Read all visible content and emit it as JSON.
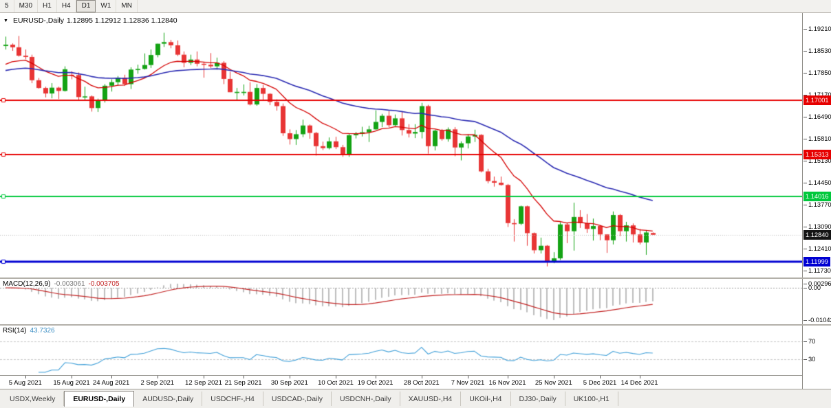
{
  "icons": {
    "dropdown": "▼"
  },
  "toolbar": {
    "timeframes": [
      {
        "label": "5",
        "active": false
      },
      {
        "label": "M30",
        "active": false
      },
      {
        "label": "H1",
        "active": false
      },
      {
        "label": "H4",
        "active": false
      },
      {
        "label": "D1",
        "active": true
      },
      {
        "label": "W1",
        "active": false
      },
      {
        "label": "MN",
        "active": false
      }
    ]
  },
  "chart": {
    "title_symbol": "EURUSD-,Daily",
    "title_ohlc": "1.12895 1.12912 1.12836 1.12840"
  },
  "chart_data": {
    "type": "candlestick",
    "symbol": "EURUSD-",
    "timeframe": "Daily",
    "current_bar": {
      "open": "1.12895",
      "high": "1.12912",
      "low": "1.12836",
      "close": "1.12840"
    },
    "ylim": [
      1.1173,
      1.1921
    ],
    "colors": {
      "bull": "#14a314",
      "bear": "#e83535",
      "ma_fast": "#d40000",
      "ma_slow": "#2a2ab2",
      "bid_line": "#bcbcbc"
    },
    "price_scale_ticks": [
      "1.19210",
      "1.18530",
      "1.17850",
      "1.17170",
      "1.16490",
      "1.15810",
      "1.15130",
      "1.14450",
      "1.13770",
      "1.13090",
      "1.12410",
      "1.11730"
    ],
    "horizontal_lines": [
      {
        "price": 1.17001,
        "label": "1.17001",
        "color": "#e60000",
        "width": 2
      },
      {
        "price": 1.15313,
        "label": "1.15313",
        "color": "#e60000",
        "width": 2
      },
      {
        "price": 1.14016,
        "label": "1.14016",
        "color": "#00c83c",
        "width": 2
      },
      {
        "price": 1.11999,
        "label": "1.11999",
        "color": "#0000d2",
        "width": 3
      }
    ],
    "current_price": {
      "price": 1.1284,
      "label": "1.12840",
      "color": "#141414"
    },
    "moving_averages": [
      {
        "name": "fast-red",
        "type": "ema",
        "period": 12,
        "seed": 1.18,
        "color": "#d40000",
        "width": 1.3
      },
      {
        "name": "slow-blue",
        "type": "ema",
        "period": 40,
        "seed": 1.1788,
        "color": "#2a2ab2",
        "width": 1.6
      }
    ],
    "time_labels": [
      {
        "text": "5 Aug 2021",
        "bar": 3
      },
      {
        "text": "15 Aug 2021",
        "bar": 10
      },
      {
        "text": "24 Aug 2021",
        "bar": 16
      },
      {
        "text": "2 Sep 2021",
        "bar": 23
      },
      {
        "text": "12 Sep 2021",
        "bar": 30
      },
      {
        "text": "21 Sep 2021",
        "bar": 36
      },
      {
        "text": "30 Sep 2021",
        "bar": 43
      },
      {
        "text": "10 Oct 2021",
        "bar": 50
      },
      {
        "text": "19 Oct 2021",
        "bar": 56
      },
      {
        "text": "28 Oct 2021",
        "bar": 63
      },
      {
        "text": "7 Nov 2021",
        "bar": 70
      },
      {
        "text": "16 Nov 2021",
        "bar": 76
      },
      {
        "text": "25 Nov 2021",
        "bar": 83
      },
      {
        "text": "5 Dec 2021",
        "bar": 90
      },
      {
        "text": "14 Dec 2021",
        "bar": 96
      }
    ],
    "indicators": {
      "macd": {
        "label": "MACD(12,26,9)",
        "values": [
          "-0.003061",
          "-0.003705"
        ],
        "scale": [
          "0.002966",
          "0.00",
          "-0.010422"
        ],
        "histogram_color": "#bdbdbd",
        "signal_color": "#c22222"
      },
      "rsi": {
        "label": "RSI(14)",
        "value": "43.7326",
        "levels": [
          70,
          30
        ],
        "scale": [
          "70",
          "30"
        ],
        "line_color": "#3f9fd8",
        "level_color": "#c8c8c8"
      }
    },
    "candles": [
      [
        "2021.08.02",
        1.1868,
        1.1897,
        1.1857,
        1.1872
      ],
      [
        "2021.08.03",
        1.1872,
        1.1876,
        1.1853,
        1.1864
      ],
      [
        "2021.08.04",
        1.1864,
        1.1899,
        1.1835,
        1.1838
      ],
      [
        "2021.08.05",
        1.1838,
        1.1857,
        1.1827,
        1.1834
      ],
      [
        "2021.08.06",
        1.1834,
        1.1841,
        1.1753,
        1.1762
      ],
      [
        "2021.08.09",
        1.1762,
        1.1769,
        1.1736,
        1.1738
      ],
      [
        "2021.08.10",
        1.1738,
        1.1742,
        1.1709,
        1.1721
      ],
      [
        "2021.08.11",
        1.1721,
        1.1753,
        1.1706,
        1.1739
      ],
      [
        "2021.08.12",
        1.1739,
        1.1742,
        1.1704,
        1.1729
      ],
      [
        "2021.08.13",
        1.1729,
        1.1805,
        1.1727,
        1.1796
      ],
      [
        "2021.08.16",
        1.1779,
        1.179,
        1.1765,
        1.1778
      ],
      [
        "2021.08.17",
        1.1778,
        1.1786,
        1.1702,
        1.171
      ],
      [
        "2021.08.18",
        1.171,
        1.1742,
        1.17,
        1.1712
      ],
      [
        "2021.08.19",
        1.1712,
        1.1715,
        1.1665,
        1.1676
      ],
      [
        "2021.08.20",
        1.1676,
        1.1705,
        1.1664,
        1.1698
      ],
      [
        "2021.08.23",
        1.1698,
        1.175,
        1.1693,
        1.1745
      ],
      [
        "2021.08.24",
        1.1745,
        1.1765,
        1.1727,
        1.1756
      ],
      [
        "2021.08.25",
        1.1756,
        1.1775,
        1.1745,
        1.177
      ],
      [
        "2021.08.26",
        1.177,
        1.1779,
        1.1745,
        1.175
      ],
      [
        "2021.08.27",
        1.175,
        1.1802,
        1.1735,
        1.1795
      ],
      [
        "2021.08.30",
        1.1795,
        1.181,
        1.1782,
        1.1797
      ],
      [
        "2021.08.31",
        1.1797,
        1.1845,
        1.1795,
        1.1809
      ],
      [
        "2021.09.01",
        1.1809,
        1.1857,
        1.18,
        1.184
      ],
      [
        "2021.09.02",
        1.184,
        1.1875,
        1.1833,
        1.1875
      ],
      [
        "2021.09.03",
        1.1875,
        1.1909,
        1.1865,
        1.188
      ],
      [
        "2021.09.06",
        1.188,
        1.1887,
        1.1861,
        1.187
      ],
      [
        "2021.09.07",
        1.187,
        1.1885,
        1.1837,
        1.1841
      ],
      [
        "2021.09.08",
        1.1841,
        1.1851,
        1.1802,
        1.1816
      ],
      [
        "2021.09.09",
        1.1816,
        1.1841,
        1.1809,
        1.1826
      ],
      [
        "2021.09.10",
        1.1826,
        1.1851,
        1.1805,
        1.1813
      ],
      [
        "2021.09.13",
        1.1813,
        1.1818,
        1.177,
        1.181
      ],
      [
        "2021.09.14",
        1.181,
        1.1846,
        1.18,
        1.1805
      ],
      [
        "2021.09.15",
        1.1805,
        1.1832,
        1.1795,
        1.1816
      ],
      [
        "2021.09.16",
        1.1816,
        1.1821,
        1.175,
        1.1766
      ],
      [
        "2021.09.17",
        1.1766,
        1.1788,
        1.1725,
        1.1725
      ],
      [
        "2021.09.20",
        1.1725,
        1.1738,
        1.17,
        1.1726
      ],
      [
        "2021.09.21",
        1.1726,
        1.1749,
        1.1715,
        1.1726
      ],
      [
        "2021.09.22",
        1.1726,
        1.1756,
        1.1684,
        1.1687
      ],
      [
        "2021.09.23",
        1.1687,
        1.175,
        1.1683,
        1.1738
      ],
      [
        "2021.09.24",
        1.1738,
        1.1747,
        1.1701,
        1.172
      ],
      [
        "2021.09.27",
        1.172,
        1.1722,
        1.1685,
        1.1695
      ],
      [
        "2021.09.28",
        1.1695,
        1.1703,
        1.1668,
        1.1682
      ],
      [
        "2021.09.29",
        1.1682,
        1.169,
        1.159,
        1.1598
      ],
      [
        "2021.09.30",
        1.1598,
        1.161,
        1.1563,
        1.158
      ],
      [
        "2021.10.01",
        1.158,
        1.1608,
        1.1562,
        1.1595
      ],
      [
        "2021.10.04",
        1.1595,
        1.164,
        1.1586,
        1.1622
      ],
      [
        "2021.10.05",
        1.1622,
        1.1625,
        1.1581,
        1.1599
      ],
      [
        "2021.10.06",
        1.1599,
        1.1602,
        1.1529,
        1.1558
      ],
      [
        "2021.10.07",
        1.1558,
        1.1572,
        1.1546,
        1.1552
      ],
      [
        "2021.10.08",
        1.1552,
        1.1585,
        1.1548,
        1.1573
      ],
      [
        "2021.10.11",
        1.1573,
        1.1587,
        1.1549,
        1.1555
      ],
      [
        "2021.10.12",
        1.1555,
        1.1562,
        1.1525,
        1.153
      ],
      [
        "2021.10.13",
        1.153,
        1.1598,
        1.1525,
        1.1592
      ],
      [
        "2021.10.14",
        1.1592,
        1.1602,
        1.1582,
        1.1596
      ],
      [
        "2021.10.15",
        1.1596,
        1.1618,
        1.1588,
        1.1601
      ],
      [
        "2021.10.18",
        1.1601,
        1.1621,
        1.1571,
        1.161
      ],
      [
        "2021.10.19",
        1.161,
        1.1669,
        1.1609,
        1.1633
      ],
      [
        "2021.10.20",
        1.1633,
        1.1658,
        1.1617,
        1.1652
      ],
      [
        "2021.10.21",
        1.1652,
        1.1667,
        1.1617,
        1.1623
      ],
      [
        "2021.10.22",
        1.1623,
        1.1656,
        1.162,
        1.1644
      ],
      [
        "2021.10.25",
        1.1644,
        1.1664,
        1.1591,
        1.1608
      ],
      [
        "2021.10.26",
        1.1608,
        1.1626,
        1.1585,
        1.1597
      ],
      [
        "2021.10.27",
        1.1597,
        1.1626,
        1.1583,
        1.1602
      ],
      [
        "2021.10.28",
        1.1602,
        1.1692,
        1.1582,
        1.1682
      ],
      [
        "2021.10.29",
        1.1682,
        1.1686,
        1.1535,
        1.1558
      ],
      [
        "2021.11.01",
        1.1558,
        1.1609,
        1.1545,
        1.1606
      ],
      [
        "2021.11.02",
        1.1606,
        1.1611,
        1.1575,
        1.158
      ],
      [
        "2021.11.03",
        1.158,
        1.1616,
        1.1572,
        1.161
      ],
      [
        "2021.11.04",
        1.161,
        1.1617,
        1.1527,
        1.1554
      ],
      [
        "2021.11.05",
        1.1554,
        1.1573,
        1.1514,
        1.1567
      ],
      [
        "2021.11.08",
        1.1567,
        1.1595,
        1.1551,
        1.1588
      ],
      [
        "2021.11.09",
        1.1588,
        1.1609,
        1.1571,
        1.1593
      ],
      [
        "2021.11.10",
        1.1593,
        1.1595,
        1.1477,
        1.148
      ],
      [
        "2021.11.11",
        1.148,
        1.1488,
        1.1443,
        1.145
      ],
      [
        "2021.11.12",
        1.145,
        1.1464,
        1.1433,
        1.1445
      ],
      [
        "2021.11.15",
        1.1445,
        1.1464,
        1.1436,
        1.1438
      ],
      [
        "2021.11.16",
        1.1438,
        1.1441,
        1.1308,
        1.132
      ],
      [
        "2021.11.17",
        1.132,
        1.1332,
        1.1263,
        1.1318
      ],
      [
        "2021.11.18",
        1.1318,
        1.1374,
        1.1314,
        1.1372
      ],
      [
        "2021.11.19",
        1.1372,
        1.1374,
        1.125,
        1.1289
      ],
      [
        "2021.11.22",
        1.1289,
        1.1291,
        1.1226,
        1.1236
      ],
      [
        "2021.11.23",
        1.1236,
        1.1275,
        1.1226,
        1.125
      ],
      [
        "2021.11.24",
        1.125,
        1.1252,
        1.1186,
        1.12
      ],
      [
        "2021.11.25",
        1.12,
        1.123,
        1.1196,
        1.1211
      ],
      [
        "2021.11.26",
        1.1211,
        1.1323,
        1.1206,
        1.1316
      ],
      [
        "2021.11.29",
        1.1316,
        1.132,
        1.1258,
        1.1295
      ],
      [
        "2021.11.30",
        1.1295,
        1.1383,
        1.1235,
        1.1339
      ],
      [
        "2021.12.01",
        1.1339,
        1.136,
        1.1305,
        1.132
      ],
      [
        "2021.12.02",
        1.132,
        1.1348,
        1.129,
        1.1302
      ],
      [
        "2021.12.03",
        1.1302,
        1.1334,
        1.1266,
        1.1311
      ],
      [
        "2021.12.06",
        1.1311,
        1.1313,
        1.1267,
        1.1285
      ],
      [
        "2021.12.07",
        1.1285,
        1.1285,
        1.1228,
        1.1267
      ],
      [
        "2021.12.08",
        1.1267,
        1.1356,
        1.1254,
        1.1345
      ],
      [
        "2021.12.09",
        1.1345,
        1.1348,
        1.128,
        1.1295
      ],
      [
        "2021.12.10",
        1.1295,
        1.1324,
        1.1263,
        1.1313
      ],
      [
        "2021.12.13",
        1.1313,
        1.1319,
        1.126,
        1.1285
      ],
      [
        "2021.12.14",
        1.1285,
        1.1302,
        1.1254,
        1.126
      ],
      [
        "2021.12.15",
        1.126,
        1.1298,
        1.1222,
        1.1291
      ],
      [
        "2021.12.16",
        1.12895,
        1.12912,
        1.12836,
        1.1284
      ]
    ]
  },
  "tabs": [
    {
      "label": "USDX,Weekly",
      "active": false
    },
    {
      "label": "EURUSD-,Daily",
      "active": true
    },
    {
      "label": "AUDUSD-,Daily",
      "active": false
    },
    {
      "label": "USDCHF-,H4",
      "active": false
    },
    {
      "label": "USDCAD-,Daily",
      "active": false
    },
    {
      "label": "USDCNH-,Daily",
      "active": false
    },
    {
      "label": "XAUUSD-,H4",
      "active": false
    },
    {
      "label": "UKOil-,H4",
      "active": false
    },
    {
      "label": "DJ30-,Daily",
      "active": false
    },
    {
      "label": "UK100-,H1",
      "active": false
    }
  ]
}
